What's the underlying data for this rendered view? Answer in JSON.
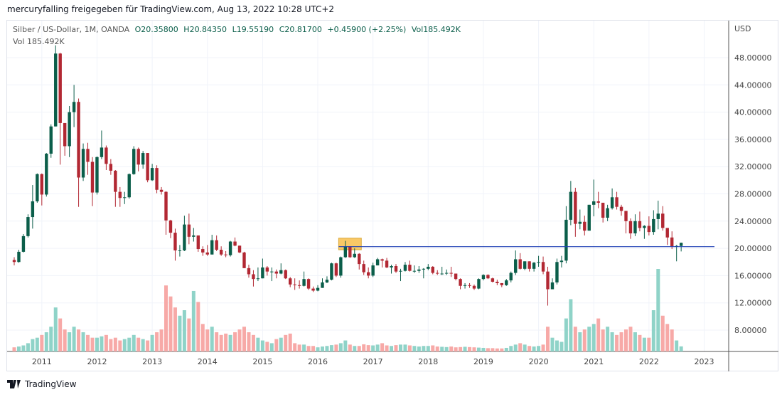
{
  "header": {
    "title": "mercuryfalling freigegeben für TradingView.com, Aug 13, 2022 10:28 UTC+2"
  },
  "legend": {
    "symbol": "Silber / US-Dollar, 1M, OANDA",
    "o": "O20.35800",
    "h": "H20.84350",
    "l": "L19.55190",
    "c": "C20.81700",
    "change": "+0.45900 (+2.25%)",
    "vol": "Vol185.492K",
    "vol_label": "Vol",
    "vol_value": "185.492K"
  },
  "footer": {
    "brand": "TradingView"
  },
  "chart_data": {
    "type": "candlestick",
    "currency": "USD",
    "start": "2010-07",
    "interval": "1M",
    "first_open": 18.3,
    "close": [
      18.0,
      19.5,
      21.8,
      24.6,
      26.9,
      30.9,
      27.9,
      33.9,
      37.9,
      48.6,
      38.4,
      35.0,
      40.0,
      41.5,
      30.4,
      34.6,
      32.7,
      28.2,
      33.4,
      34.8,
      32.4,
      31.4,
      28.3,
      27.4,
      27.5,
      30.9,
      34.6,
      32.3,
      34.0,
      30.0,
      31.8,
      28.6,
      28.3,
      24.1,
      22.3,
      19.7,
      19.7,
      23.5,
      21.7,
      21.9,
      19.9,
      19.4,
      19.1,
      21.2,
      19.8,
      19.1,
      19.0,
      21.0,
      20.4,
      19.4,
      17.1,
      16.2,
      15.5,
      15.6,
      17.2,
      16.6,
      16.6,
      16.3,
      16.8,
      15.6,
      14.7,
      14.6,
      14.5,
      15.5,
      14.1,
      13.8,
      14.2,
      15.0,
      15.4,
      17.8,
      16.0,
      18.7,
      20.3,
      18.7,
      19.2,
      17.7,
      16.5,
      16.0,
      17.5,
      18.4,
      18.2,
      17.2,
      17.4,
      16.6,
      16.7,
      17.6,
      16.7,
      16.7,
      16.9,
      17.0,
      17.3,
      16.4,
      16.3,
      16.3,
      16.4,
      16.3,
      15.5,
      14.5,
      14.6,
      14.5,
      14.1,
      15.5,
      16.1,
      15.6,
      15.1,
      14.9,
      14.6,
      15.3,
      16.4,
      18.4,
      17.0,
      18.1,
      17.0,
      17.9,
      18.0,
      16.6,
      14.0,
      15.0,
      18.0,
      18.2,
      24.2,
      28.3,
      23.6,
      23.9,
      22.6,
      26.4,
      26.9,
      26.7,
      24.5,
      25.9,
      27.5,
      26.1,
      25.5,
      24.0,
      22.2,
      24.0,
      23.0,
      23.3,
      22.4,
      24.3,
      25.1,
      23.0,
      21.6,
      20.3,
      20.358,
      20.817
    ],
    "high": [
      18.7,
      19.8,
      22.1,
      25.0,
      29.3,
      31.0,
      31.0,
      34.0,
      38.2,
      49.8,
      48.7,
      38.0,
      40.9,
      44.0,
      42.0,
      35.4,
      35.5,
      33.4,
      33.5,
      37.3,
      35.1,
      33.1,
      31.5,
      29.0,
      28.3,
      31.0,
      35.0,
      34.8,
      34.3,
      34.0,
      32.4,
      32.2,
      29.0,
      28.4,
      24.2,
      22.9,
      20.5,
      24.8,
      25.1,
      23.0,
      21.9,
      20.3,
      20.5,
      22.0,
      21.9,
      20.3,
      19.6,
      21.1,
      21.6,
      20.4,
      19.5,
      17.6,
      16.8,
      17.2,
      18.5,
      17.4,
      17.2,
      16.9,
      17.8,
      16.9,
      15.8,
      15.6,
      15.3,
      16.6,
      15.6,
      14.4,
      14.6,
      15.6,
      15.9,
      17.9,
      17.9,
      18.8,
      21.1,
      20.3,
      20.0,
      19.3,
      18.2,
      17.2,
      17.9,
      18.6,
      18.5,
      18.6,
      17.6,
      17.7,
      17.0,
      18.0,
      18.2,
      17.5,
      17.4,
      17.1,
      17.7,
      17.4,
      16.8,
      17.3,
      16.9,
      17.3,
      16.3,
      15.6,
      14.9,
      14.9,
      14.7,
      15.6,
      16.2,
      16.2,
      15.7,
      15.4,
      14.9,
      15.5,
      16.6,
      19.7,
      19.3,
      18.1,
      18.1,
      18.0,
      18.9,
      18.8,
      17.3,
      15.6,
      18.5,
      18.9,
      26.2,
      29.9,
      28.9,
      25.7,
      24.8,
      26.4,
      30.1,
      28.3,
      26.6,
      26.4,
      28.8,
      28.3,
      26.4,
      24.9,
      24.4,
      25.0,
      25.4,
      23.4,
      24.7,
      25.6,
      27.0,
      26.2,
      22.5,
      22.5,
      20.5,
      20.8435
    ],
    "low": [
      17.5,
      17.9,
      19.4,
      21.6,
      22.9,
      26.7,
      26.3,
      27.6,
      33.3,
      37.9,
      32.3,
      33.6,
      33.4,
      37.8,
      26.1,
      29.9,
      30.8,
      26.2,
      27.9,
      33.1,
      31.5,
      30.8,
      26.1,
      26.1,
      26.5,
      27.3,
      30.8,
      31.3,
      31.7,
      29.7,
      29.9,
      28.1,
      27.9,
      22.0,
      21.5,
      18.2,
      18.8,
      19.6,
      20.6,
      21.0,
      19.5,
      18.9,
      18.9,
      19.1,
      19.6,
      18.9,
      18.7,
      18.8,
      20.3,
      19.3,
      17.1,
      15.7,
      14.4,
      15.2,
      15.6,
      16.0,
      15.2,
      15.6,
      16.2,
      15.5,
      14.3,
      13.9,
      14.1,
      14.4,
      13.9,
      13.6,
      13.7,
      14.2,
      14.9,
      15.3,
      15.8,
      15.7,
      18.6,
      18.6,
      18.6,
      16.9,
      16.1,
      15.6,
      15.8,
      17.5,
      17.2,
      17.1,
      16.3,
      16.4,
      15.2,
      16.6,
      16.6,
      16.4,
      16.4,
      15.6,
      16.8,
      16.2,
      16.1,
      16.1,
      16.1,
      15.8,
      15.3,
      14.0,
      14.1,
      14.2,
      13.9,
      14.0,
      15.3,
      15.5,
      15.0,
      14.6,
      14.3,
      14.5,
      15.0,
      16.1,
      16.9,
      16.8,
      16.6,
      16.6,
      17.3,
      16.2,
      11.6,
      14.3,
      14.7,
      17.2,
      17.8,
      23.4,
      21.7,
      22.8,
      21.9,
      22.6,
      24.7,
      25.9,
      23.8,
      24.0,
      25.7,
      25.7,
      24.8,
      22.2,
      21.4,
      21.8,
      22.5,
      21.4,
      21.9,
      22.0,
      22.8,
      22.6,
      20.5,
      19.9,
      18.1,
      19.5519
    ],
    "volume_k": [
      150,
      180,
      220,
      300,
      450,
      500,
      600,
      700,
      900,
      1600,
      1200,
      800,
      700,
      900,
      800,
      700,
      600,
      500,
      500,
      550,
      600,
      450,
      500,
      400,
      450,
      500,
      600,
      500,
      450,
      400,
      600,
      700,
      800,
      2400,
      2000,
      1600,
      1300,
      1500,
      1200,
      2200,
      1800,
      1000,
      800,
      900,
      700,
      600,
      650,
      600,
      700,
      800,
      900,
      700,
      600,
      500,
      400,
      350,
      300,
      450,
      500,
      600,
      650,
      300,
      250,
      250,
      200,
      200,
      150,
      180,
      200,
      230,
      250,
      300,
      400,
      250,
      200,
      200,
      260,
      230,
      220,
      250,
      300,
      220,
      200,
      230,
      250,
      250,
      220,
      200,
      180,
      200,
      200,
      220,
      180,
      170,
      160,
      180,
      150,
      160,
      170,
      160,
      150,
      140,
      130,
      120,
      120,
      110,
      110,
      130,
      200,
      250,
      300,
      250,
      200,
      180,
      200,
      250,
      900,
      500,
      400,
      350,
      1200,
      1900,
      900,
      700,
      800,
      900,
      1000,
      1200,
      800,
      900,
      700,
      600,
      700,
      800,
      900,
      700,
      600,
      500,
      500,
      1500,
      3000,
      1300,
      1000,
      800,
      400,
      185.492
    ],
    "y_ticks": [
      "8.00000",
      "12.00000",
      "16.00000",
      "20.00000",
      "24.00000",
      "28.00000",
      "32.00000",
      "36.00000",
      "40.00000",
      "44.00000",
      "48.00000"
    ],
    "x_ticks": [
      "2011",
      "2012",
      "2013",
      "2014",
      "2015",
      "2016",
      "2017",
      "2018",
      "2019",
      "2020",
      "2021",
      "2022",
      "2023"
    ],
    "annotations": {
      "horizontal_line": 20.25,
      "box": {
        "from": "2016-06",
        "to": "2016-10",
        "low": 19.8,
        "high": 21.5
      }
    },
    "colors": {
      "up": "#0b5e4a",
      "down": "#b22833",
      "vol_up": "#8fd3c8",
      "vol_down": "#f7a9a7",
      "line": "#1e3fb5",
      "box": "#f9c866"
    }
  }
}
